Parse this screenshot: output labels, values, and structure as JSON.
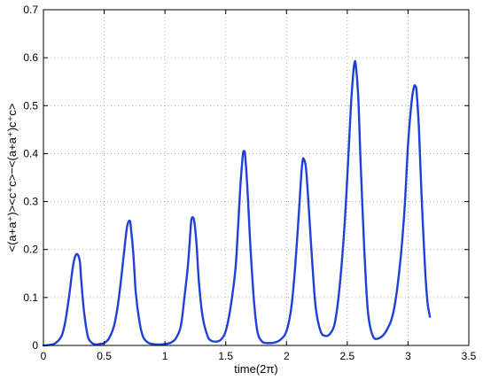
{
  "chart_data": {
    "type": "line",
    "title": "",
    "xlabel": "time(2π)",
    "ylabel": "<(a+a⁺)><c⁺c>−<(a+a⁺)c⁺c>",
    "xlim": [
      0,
      3.5
    ],
    "ylim": [
      0,
      0.7
    ],
    "xticks": [
      0,
      0.5,
      1,
      1.5,
      2,
      2.5,
      3,
      3.5
    ],
    "xtick_labels": [
      "0",
      "0.5",
      "1",
      "1.5",
      "2",
      "2.5",
      "3",
      "3.5"
    ],
    "yticks": [
      0,
      0.1,
      0.2,
      0.3,
      0.4,
      0.5,
      0.6,
      0.7
    ],
    "ytick_labels": [
      "0",
      "0.1",
      "0.2",
      "0.3",
      "0.4",
      "0.5",
      "0.6",
      "0.7"
    ],
    "grid": true,
    "grid_style": "dotted",
    "series": [
      {
        "color": "#1f3fd9",
        "x": [
          0,
          0.05,
          0.1,
          0.15,
          0.18,
          0.21,
          0.24,
          0.26,
          0.28,
          0.3,
          0.31,
          0.33,
          0.35,
          0.37,
          0.4,
          0.43,
          0.46,
          0.5,
          0.54,
          0.58,
          0.61,
          0.64,
          0.67,
          0.69,
          0.71,
          0.72,
          0.74,
          0.76,
          0.79,
          0.82,
          0.86,
          0.9,
          0.95,
          1.0,
          1.05,
          1.09,
          1.13,
          1.16,
          1.19,
          1.21,
          1.22,
          1.24,
          1.26,
          1.28,
          1.31,
          1.35,
          1.38,
          1.42,
          1.46,
          1.5,
          1.54,
          1.58,
          1.6,
          1.62,
          1.64,
          1.65,
          1.66,
          1.68,
          1.7,
          1.73,
          1.76,
          1.8,
          1.85,
          1.9,
          1.95,
          2.0,
          2.04,
          2.07,
          2.1,
          2.12,
          2.13,
          2.14,
          2.16,
          2.18,
          2.21,
          2.24,
          2.28,
          2.32,
          2.36,
          2.4,
          2.44,
          2.48,
          2.51,
          2.53,
          2.55,
          2.56,
          2.57,
          2.59,
          2.61,
          2.64,
          2.67,
          2.71,
          2.76,
          2.82,
          2.88,
          2.93,
          2.97,
          3.0,
          3.03,
          3.05,
          3.06,
          3.07,
          3.09,
          3.11,
          3.14,
          3.16,
          3.18
        ],
        "y": [
          0,
          0.001,
          0.005,
          0.02,
          0.05,
          0.1,
          0.16,
          0.185,
          0.19,
          0.175,
          0.14,
          0.08,
          0.04,
          0.015,
          0.005,
          0.002,
          0.003,
          0.005,
          0.015,
          0.04,
          0.08,
          0.14,
          0.21,
          0.25,
          0.26,
          0.245,
          0.19,
          0.11,
          0.05,
          0.018,
          0.006,
          0.003,
          0.002,
          0.003,
          0.006,
          0.015,
          0.04,
          0.1,
          0.17,
          0.24,
          0.265,
          0.26,
          0.21,
          0.13,
          0.06,
          0.02,
          0.01,
          0.008,
          0.012,
          0.03,
          0.08,
          0.16,
          0.24,
          0.33,
          0.395,
          0.405,
          0.395,
          0.32,
          0.22,
          0.1,
          0.03,
          0.008,
          0.005,
          0.006,
          0.012,
          0.03,
          0.08,
          0.16,
          0.27,
          0.35,
          0.38,
          0.39,
          0.37,
          0.3,
          0.18,
          0.08,
          0.03,
          0.02,
          0.025,
          0.05,
          0.13,
          0.26,
          0.4,
          0.5,
          0.57,
          0.59,
          0.585,
          0.52,
          0.38,
          0.2,
          0.07,
          0.02,
          0.015,
          0.03,
          0.07,
          0.16,
          0.28,
          0.42,
          0.51,
          0.54,
          0.54,
          0.53,
          0.45,
          0.32,
          0.16,
          0.09,
          0.06
        ]
      }
    ]
  }
}
